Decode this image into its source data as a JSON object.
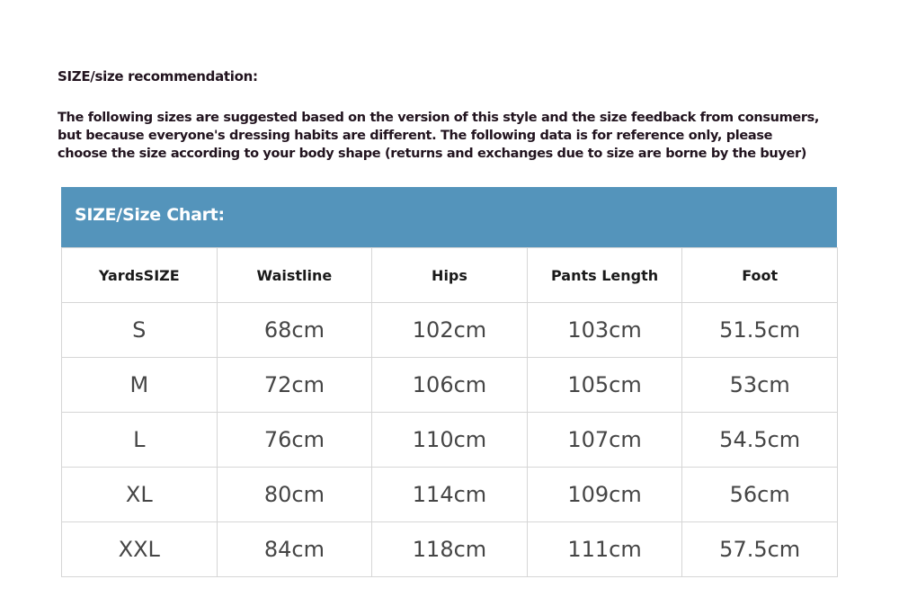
{
  "title": "SIZE/size recommendation:",
  "intro_lines": [
    "The following sizes are suggested based on the version of this style and the size feedback from consumers,",
    "but because everyone's dressing habits are different. The following data is for reference only, please",
    "choose the size according to your body shape (returns and exchanges due to size are borne by the buyer)"
  ],
  "chart": {
    "title": "SIZE/Size Chart:",
    "header_color": "#5494bb",
    "columns": [
      "YardsSIZE",
      "Waistline",
      "Hips",
      "Pants Length",
      "Foot"
    ],
    "rows": [
      [
        "S",
        "68cm",
        "102cm",
        "103cm",
        "51.5cm"
      ],
      [
        "M",
        "72cm",
        "106cm",
        "105cm",
        "53cm"
      ],
      [
        "L",
        "76cm",
        "110cm",
        "107cm",
        "54.5cm"
      ],
      [
        "XL",
        "80cm",
        "114cm",
        "109cm",
        "56cm"
      ],
      [
        "XXL",
        "84cm",
        "118cm",
        "111cm",
        "57.5cm"
      ]
    ]
  }
}
